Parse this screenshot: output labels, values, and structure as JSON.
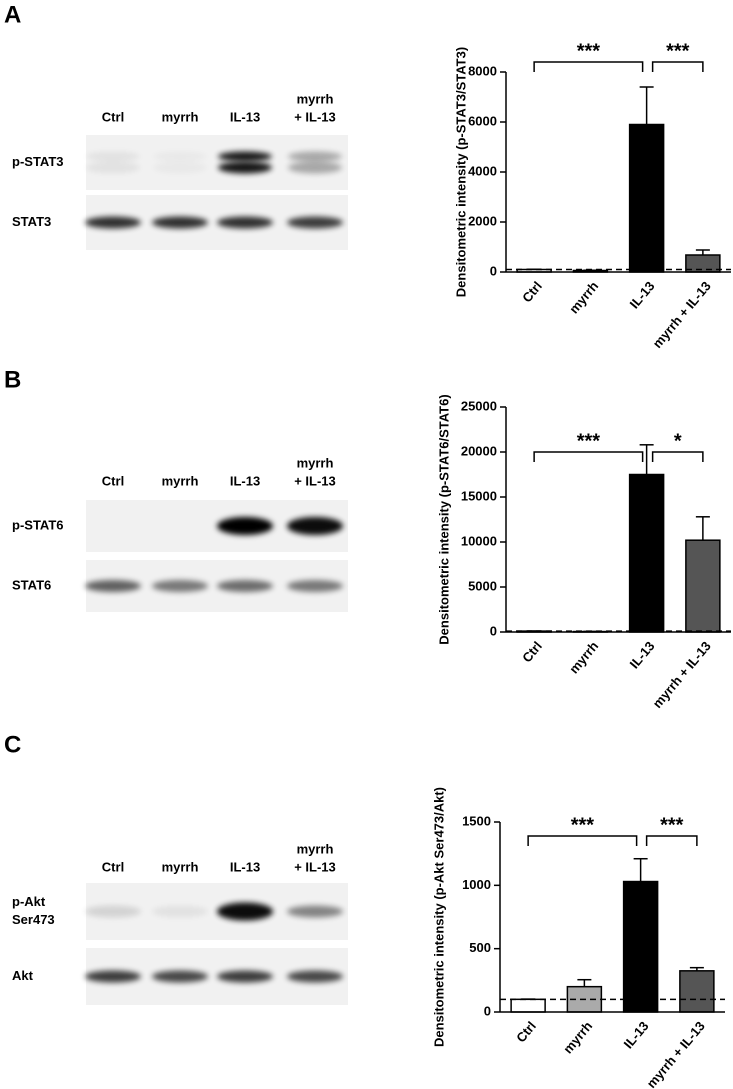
{
  "figure": {
    "panels": [
      {
        "letter": "A",
        "lanes": [
          [
            "Ctrl"
          ],
          [
            "myrrh"
          ],
          [
            "IL-13"
          ],
          [
            "myrrh",
            "+ IL-13"
          ]
        ],
        "rows": [
          [
            "p-STAT3"
          ],
          [
            "STAT3"
          ]
        ]
      },
      {
        "letter": "B",
        "lanes": [
          [
            "Ctrl"
          ],
          [
            "myrrh"
          ],
          [
            "IL-13"
          ],
          [
            "myrrh",
            "+ IL-13"
          ]
        ],
        "rows": [
          [
            "p-STAT6"
          ],
          [
            "STAT6"
          ]
        ]
      },
      {
        "letter": "C",
        "lanes": [
          [
            "Ctrl"
          ],
          [
            "myrrh"
          ],
          [
            "IL-13"
          ],
          [
            "myrrh",
            "+ IL-13"
          ]
        ],
        "rows": [
          [
            "p-Akt",
            "Ser473"
          ],
          [
            "Akt"
          ]
        ]
      }
    ]
  },
  "chart_data": [
    {
      "type": "bar",
      "y_label": "Densitometric intensity (p-STAT3/STAT3)",
      "categories": [
        "Ctrl",
        "myrrh",
        "IL-13",
        "myrrh + IL-13"
      ],
      "values": [
        100,
        60,
        5900,
        680
      ],
      "errors": [
        10,
        10,
        1500,
        200
      ],
      "colors": [
        "#ffffff",
        "#aaaaaa",
        "#000000",
        "#555555"
      ],
      "ylim": [
        0,
        8000
      ],
      "yticks": [
        0,
        2000,
        4000,
        6000,
        8000
      ],
      "reference_line": 100,
      "significance": [
        {
          "between": [
            "Ctrl",
            "IL-13"
          ],
          "label": "***"
        },
        {
          "between": [
            "IL-13",
            "myrrh + IL-13"
          ],
          "label": "***"
        }
      ]
    },
    {
      "type": "bar",
      "y_label": "Densitometric intensity (p-STAT6/STAT6)",
      "categories": [
        "Ctrl",
        "myrrh",
        "IL-13",
        "myrrh + IL-13"
      ],
      "values": [
        100,
        50,
        17500,
        10200
      ],
      "errors": [
        10,
        10,
        3300,
        2600
      ],
      "colors": [
        "#ffffff",
        "#aaaaaa",
        "#000000",
        "#555555"
      ],
      "ylim": [
        0,
        25000
      ],
      "yticks": [
        0,
        5000,
        10000,
        15000,
        20000,
        25000
      ],
      "reference_line": 100,
      "significance": [
        {
          "between": [
            "Ctrl",
            "IL-13"
          ],
          "label": "***"
        },
        {
          "between": [
            "IL-13",
            "myrrh + IL-13"
          ],
          "label": "*"
        }
      ]
    },
    {
      "type": "bar",
      "y_label": "Densitometric intensity (p-Akt Ser473/Akt)",
      "categories": [
        "Ctrl",
        "myrrh",
        "IL-13",
        "myrrh + IL-13"
      ],
      "values": [
        100,
        200,
        1030,
        325
      ],
      "errors": [
        2,
        55,
        180,
        25
      ],
      "colors": [
        "#ffffff",
        "#aaaaaa",
        "#000000",
        "#555555"
      ],
      "ylim": [
        0,
        1500
      ],
      "yticks": [
        0,
        500,
        1000,
        1500
      ],
      "reference_line": 100,
      "significance": [
        {
          "between": [
            "Ctrl",
            "IL-13"
          ],
          "label": "***"
        },
        {
          "between": [
            "IL-13",
            "myrrh + IL-13"
          ],
          "label": "***"
        }
      ]
    }
  ]
}
